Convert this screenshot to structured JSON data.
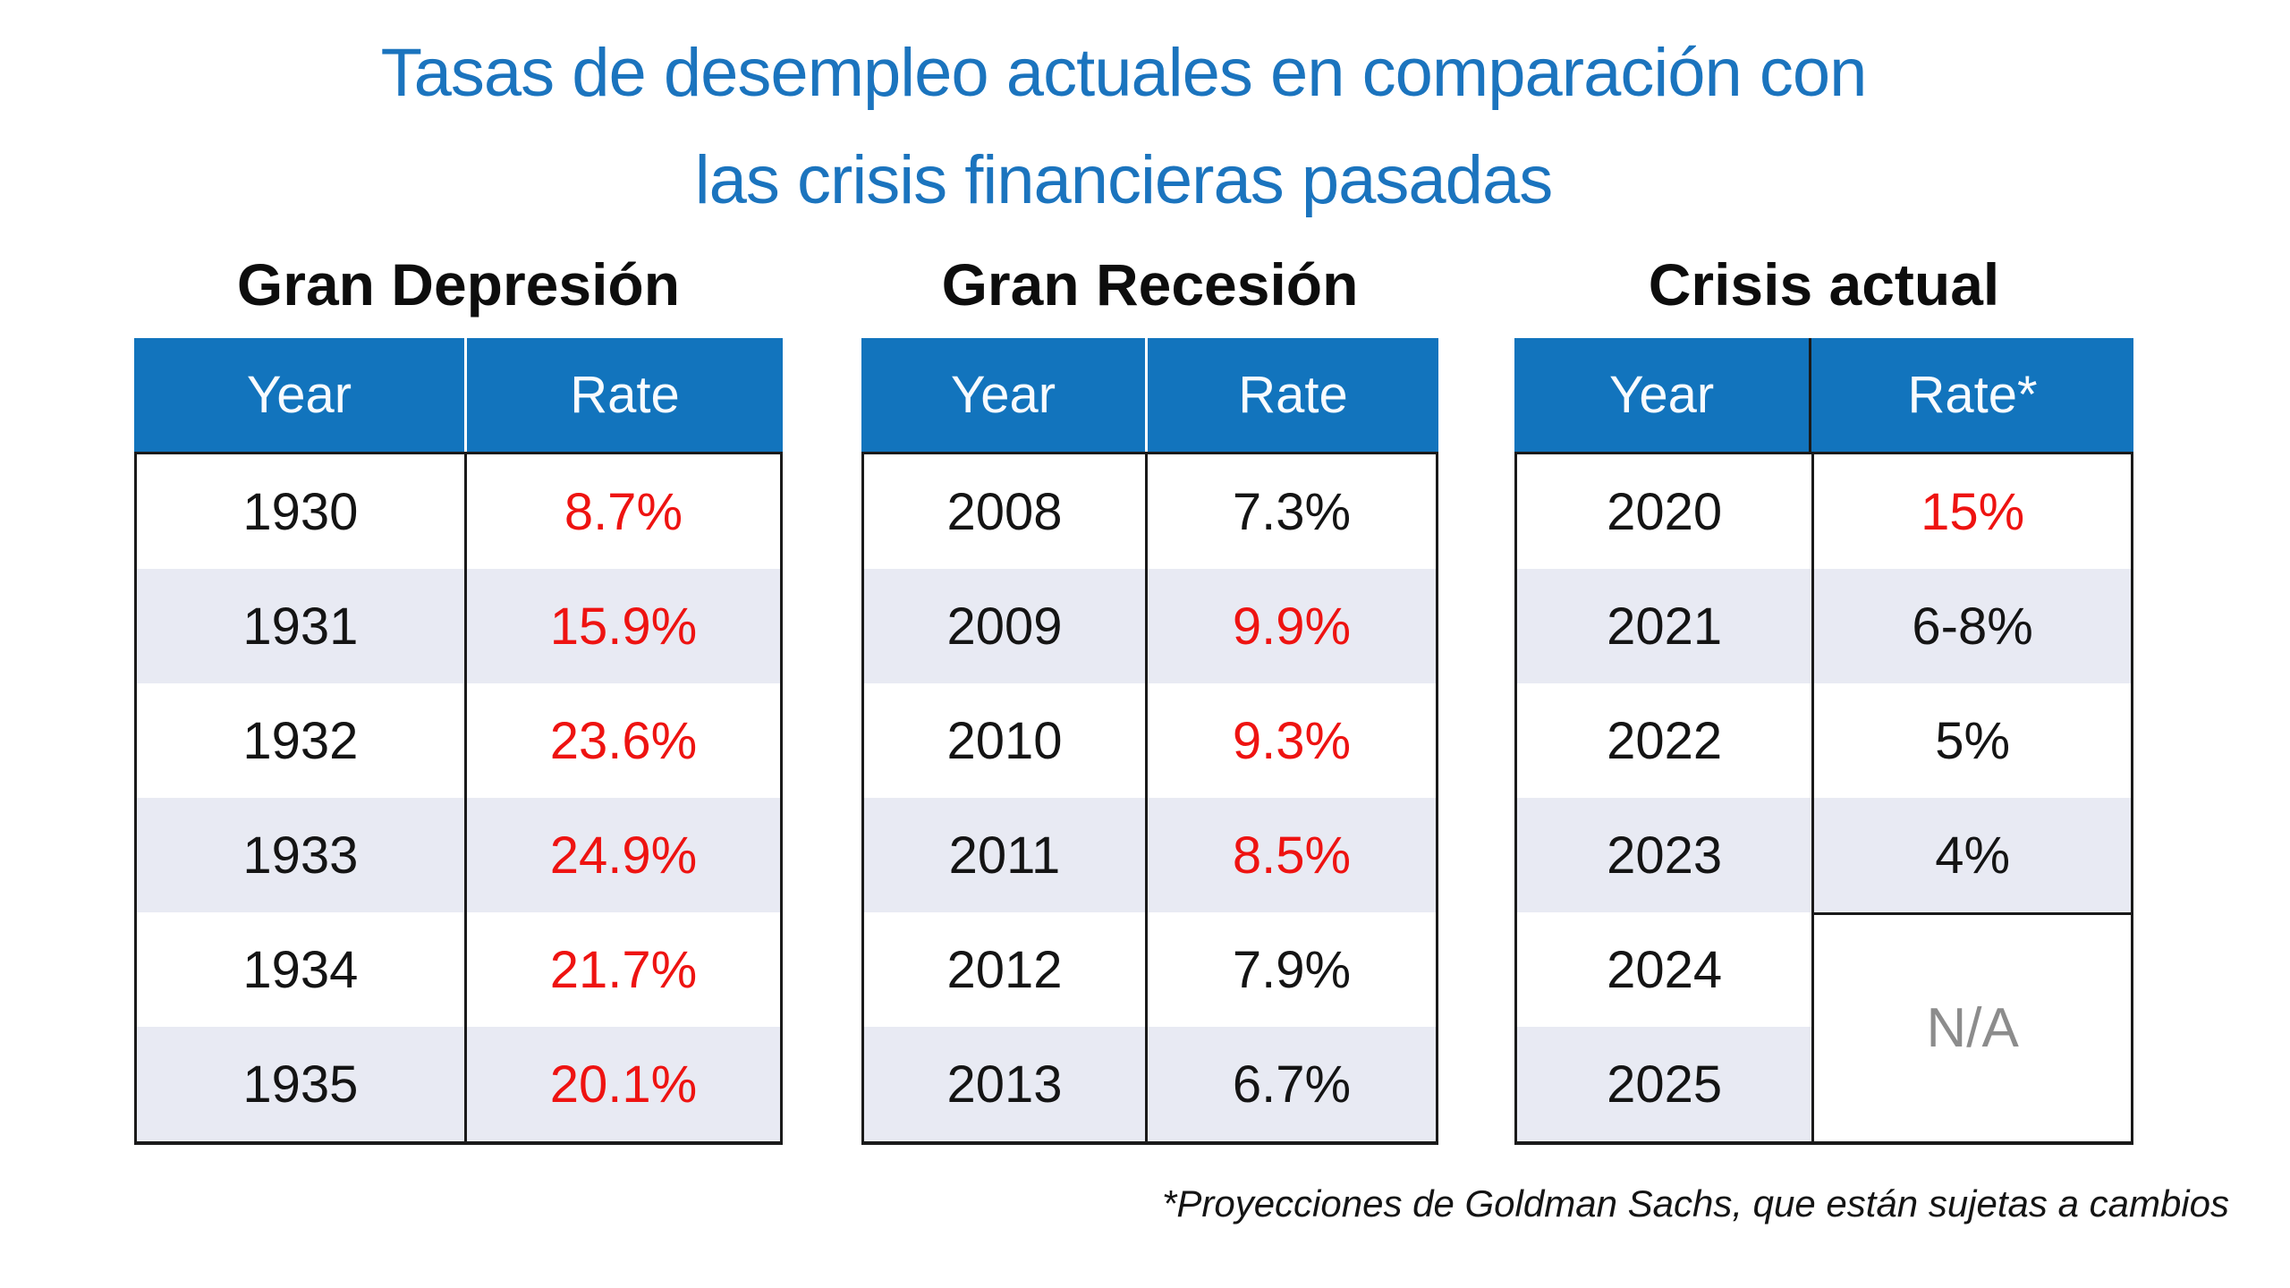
{
  "palette": {
    "title_blue": "#1B74BE",
    "header_blue": "#1274BD",
    "header_text": "#F8FBFE",
    "highlight_red": "#EE1311",
    "row_alt": "#E8EAF3",
    "na_gray": "#8C8C8C",
    "border_black": "#1A1A1A"
  },
  "title": {
    "line1": "Tasas de desempleo actuales en comparación con",
    "line2": "las crisis financieras pasadas"
  },
  "tables": [
    {
      "heading": "Gran Depresión",
      "columns": [
        "Year",
        "Rate"
      ],
      "rows": [
        {
          "year": "1930",
          "rate": "8.7%",
          "tone": "red"
        },
        {
          "year": "1931",
          "rate": "15.9%",
          "tone": "red"
        },
        {
          "year": "1932",
          "rate": "23.6%",
          "tone": "red"
        },
        {
          "year": "1933",
          "rate": "24.9%",
          "tone": "red"
        },
        {
          "year": "1934",
          "rate": "21.7%",
          "tone": "red"
        },
        {
          "year": "1935",
          "rate": "20.1%",
          "tone": "red"
        }
      ]
    },
    {
      "heading": "Gran Recesión",
      "columns": [
        "Year",
        "Rate"
      ],
      "rows": [
        {
          "year": "2008",
          "rate": "7.3%",
          "tone": "dark"
        },
        {
          "year": "2009",
          "rate": "9.9%",
          "tone": "red"
        },
        {
          "year": "2010",
          "rate": "9.3%",
          "tone": "red"
        },
        {
          "year": "2011",
          "rate": "8.5%",
          "tone": "red"
        },
        {
          "year": "2012",
          "rate": "7.9%",
          "tone": "dark"
        },
        {
          "year": "2013",
          "rate": "6.7%",
          "tone": "dark"
        }
      ]
    },
    {
      "heading": "Crisis actual",
      "columns": [
        "Year",
        "Rate*"
      ],
      "years": [
        "2020",
        "2021",
        "2022",
        "2023",
        "2024",
        "2025"
      ],
      "rates": [
        {
          "value": "15%",
          "tone": "red"
        },
        {
          "value": "6-8%",
          "tone": "dark"
        },
        {
          "value": "5%",
          "tone": "dark"
        },
        {
          "value": "4%",
          "tone": "dark"
        }
      ],
      "merged_rate": {
        "value": "N/A",
        "tone": "gray"
      }
    }
  ],
  "footnote": "*Proyecciones de Goldman Sachs, que están sujetas a cambios",
  "chart_data": [
    {
      "type": "table",
      "title": "Gran Depresión",
      "columns": [
        "Year",
        "Rate"
      ],
      "rows": [
        [
          "1930",
          "8.7%"
        ],
        [
          "1931",
          "15.9%"
        ],
        [
          "1932",
          "23.6%"
        ],
        [
          "1933",
          "24.9%"
        ],
        [
          "1934",
          "21.7%"
        ],
        [
          "1935",
          "20.1%"
        ]
      ]
    },
    {
      "type": "table",
      "title": "Gran Recesión",
      "columns": [
        "Year",
        "Rate"
      ],
      "rows": [
        [
          "2008",
          "7.3%"
        ],
        [
          "2009",
          "9.9%"
        ],
        [
          "2010",
          "9.3%"
        ],
        [
          "2011",
          "8.5%"
        ],
        [
          "2012",
          "7.9%"
        ],
        [
          "2013",
          "6.7%"
        ]
      ]
    },
    {
      "type": "table",
      "title": "Crisis actual",
      "columns": [
        "Year",
        "Rate*"
      ],
      "rows": [
        [
          "2020",
          "15%"
        ],
        [
          "2021",
          "6-8%"
        ],
        [
          "2022",
          "5%"
        ],
        [
          "2023",
          "4%"
        ],
        [
          "2024",
          "N/A"
        ],
        [
          "2025",
          "N/A"
        ]
      ],
      "note": "Rate cell for 2024 and 2025 is merged into a single N/A cell"
    }
  ]
}
